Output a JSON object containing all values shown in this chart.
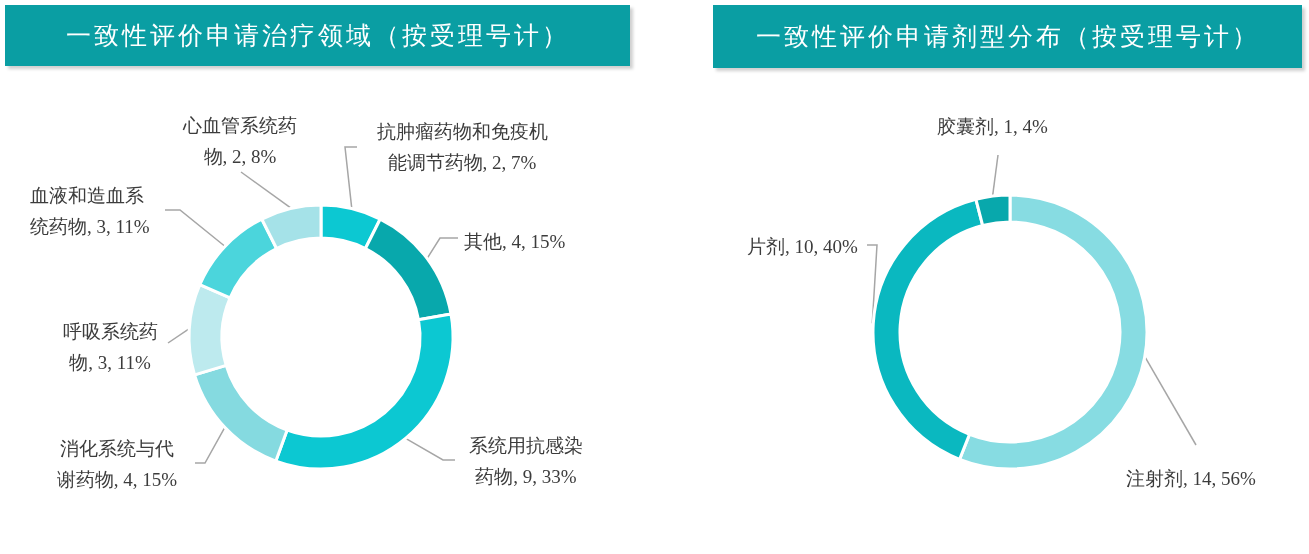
{
  "chart_data": [
    {
      "type": "donut",
      "title": "一致性评价申请治疗领域（按受理号计）",
      "categories": [
        "抗肿瘤药物和免疫机能调节药物",
        "其他",
        "系统用抗感染药物",
        "消化系统与代谢药物",
        "呼吸系统药物",
        "血液和造血系统药物",
        "心血管系统药物"
      ],
      "values": [
        2,
        4,
        9,
        4,
        3,
        3,
        2
      ],
      "value_labels": [
        "2, 7%",
        "4, 15%",
        "9, 33%",
        "4, 15%",
        "3, 11%",
        "3, 11%",
        "2, 8%"
      ],
      "colors": [
        "#0cc8d2",
        "#08a8ac",
        "#0cc8d2",
        "#85dae0",
        "#bdeaee",
        "#4bd5dc",
        "#a5e2e8"
      ]
    },
    {
      "type": "donut",
      "title": "一致性评价申请剂型分布（按受理号计）",
      "categories": [
        "注射剂",
        "片剂",
        "胶囊剂"
      ],
      "values": [
        14,
        10,
        1
      ],
      "value_labels": [
        "14, 56%",
        "10, 40%",
        "1, 4%"
      ],
      "colors": [
        "#87dce2",
        "#0ab8c0",
        "#08a8ac"
      ]
    }
  ]
}
